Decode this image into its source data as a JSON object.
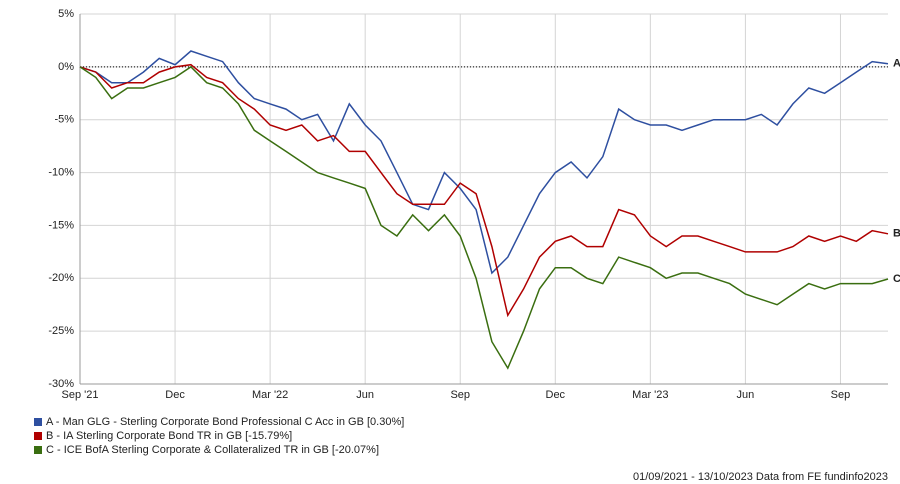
{
  "chart_data": {
    "type": "line",
    "categories": [
      "Sep '21",
      null,
      null,
      null,
      null,
      null,
      "Dec",
      null,
      null,
      null,
      null,
      null,
      "Mar '22",
      null,
      null,
      null,
      null,
      null,
      "Jun",
      null,
      null,
      null,
      null,
      null,
      "Sep",
      null,
      null,
      null,
      null,
      null,
      "Dec",
      null,
      null,
      null,
      null,
      null,
      "Mar '23",
      null,
      null,
      null,
      null,
      null,
      "Jun",
      null,
      null,
      null,
      null,
      null,
      "Sep",
      null,
      null,
      null
    ],
    "series": [
      {
        "name": "A - Man GLG - Sterling Corporate Bond Professional C Acc in GB [0.30%]",
        "end_label": "A",
        "color": "#2e4fa0",
        "values": [
          0,
          -0.5,
          -1.5,
          -1.5,
          -0.5,
          0.8,
          0.2,
          1.5,
          1.0,
          0.5,
          -1.5,
          -3,
          -3.5,
          -4,
          -5,
          -4.5,
          -7,
          -3.5,
          -5.5,
          -7,
          -10,
          -13,
          -13.5,
          -10,
          -11.5,
          -13.5,
          -19.5,
          -18,
          -15,
          -12,
          -10,
          -9,
          -10.5,
          -8.5,
          -4,
          -5,
          -5.5,
          -5.5,
          -6,
          -5.5,
          -5,
          -5,
          -5,
          -4.5,
          -5.5,
          -3.5,
          -2,
          -2.5,
          -1.5,
          -0.5,
          0.5,
          0.3
        ]
      },
      {
        "name": "B - IA Sterling Corporate Bond TR in GB [-15.79%]",
        "end_label": "B",
        "color": "#b00000",
        "values": [
          0,
          -0.5,
          -2,
          -1.5,
          -1.5,
          -0.5,
          0,
          0.2,
          -1,
          -1.5,
          -3,
          -4,
          -5.5,
          -6,
          -5.5,
          -7,
          -6.5,
          -8,
          -8,
          -10,
          -12,
          -13,
          -13,
          -13,
          -11,
          -12,
          -17,
          -23.5,
          -21,
          -18,
          -16.5,
          -16,
          -17,
          -17,
          -13.5,
          -14,
          -16,
          -17,
          -16,
          -16,
          -16.5,
          -17,
          -17.5,
          -17.5,
          -17.5,
          -17,
          -16,
          -16.5,
          -16,
          -16.5,
          -15.5,
          -15.79
        ]
      },
      {
        "name": "C - ICE BofA Sterling Corporate & Collateralized TR in GB [-20.07%]",
        "end_label": "C",
        "color": "#3a6e10",
        "values": [
          0,
          -1,
          -3,
          -2,
          -2,
          -1.5,
          -1,
          0,
          -1.5,
          -2,
          -3.5,
          -6,
          -7,
          -8,
          -9,
          -10,
          -10.5,
          -11,
          -11.5,
          -15,
          -16,
          -14,
          -15.5,
          -14,
          -16,
          -20,
          -26,
          -28.5,
          -25,
          -21,
          -19,
          -19,
          -20,
          -20.5,
          -18,
          -18.5,
          -19,
          -20,
          -19.5,
          -19.5,
          -20,
          -20.5,
          -21.5,
          -22,
          -22.5,
          -21.5,
          -20.5,
          -21,
          -20.5,
          -20.5,
          -20.5,
          -20.07
        ]
      }
    ],
    "ylim": [
      -30,
      5
    ],
    "yticks": [
      {
        "value": -30,
        "label": "-30%"
      },
      {
        "value": -25,
        "label": "-25%"
      },
      {
        "value": -20,
        "label": "-20%"
      },
      {
        "value": -15,
        "label": "-15%"
      },
      {
        "value": -10,
        "label": "-10%"
      },
      {
        "value": -5,
        "label": "-5%"
      },
      {
        "value": 0,
        "label": "0%"
      },
      {
        "value": 5,
        "label": "5%"
      }
    ],
    "grid": true,
    "zero_line": true,
    "footer": "01/09/2021 - 13/10/2023 Data from FE fundinfo2023"
  }
}
